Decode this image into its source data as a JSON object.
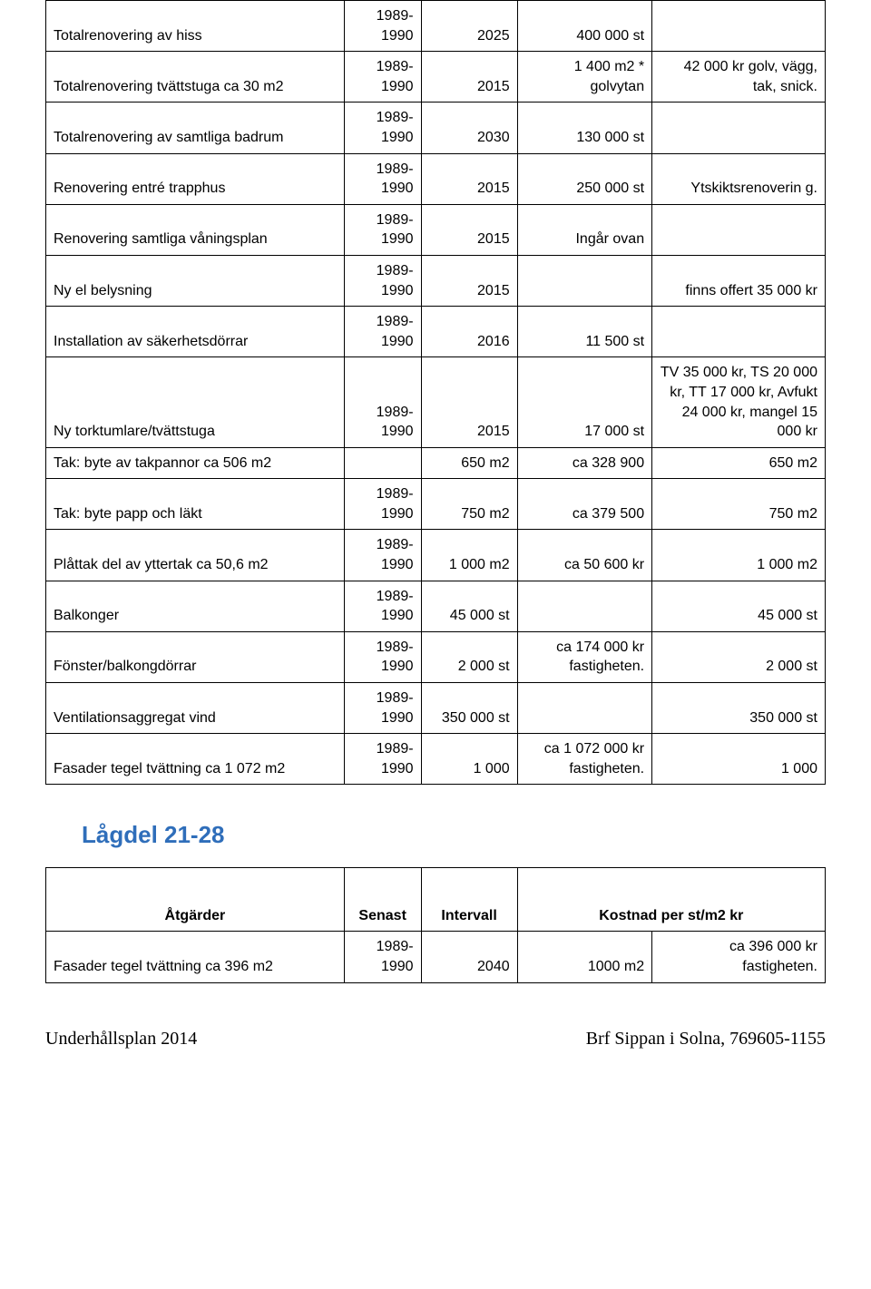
{
  "table1": {
    "rows": [
      {
        "c1": "Totalrenovering av hiss",
        "c2": "1989-1990",
        "c3": "2025",
        "c4": "400 000 st",
        "c5": ""
      },
      {
        "c1": "Totalrenovering tvättstuga ca 30 m2",
        "c2": "1989-1990",
        "c3": "2015",
        "c4": "1 400 m2 * golvytan",
        "c5": "42 000 kr golv, vägg, tak, snick."
      },
      {
        "c1": "Totalrenovering av samtliga badrum",
        "c2": "1989-1990",
        "c3": "2030",
        "c4": "130 000 st",
        "c5": ""
      },
      {
        "c1": "Renovering entré trapphus",
        "c2": "1989-1990",
        "c3": "2015",
        "c4": "250 000 st",
        "c5": "Ytskiktsrenoverin g."
      },
      {
        "c1": "Renovering samtliga våningsplan",
        "c2": "1989-1990",
        "c3": "2015",
        "c4": "Ingår ovan",
        "c5": ""
      },
      {
        "c1": "Ny el belysning",
        "c2": "1989-1990",
        "c3": "2015",
        "c4": "",
        "c5": "finns offert 35 000 kr"
      },
      {
        "c1": "Installation av säkerhetsdörrar",
        "c2": "1989-1990",
        "c3": "2016",
        "c4": "11 500 st",
        "c5": ""
      },
      {
        "c1": "Ny torktumlare/tvättstuga",
        "c2": "1989-1990",
        "c3": "2015",
        "c4": "17 000 st",
        "c5": "TV 35 000 kr, TS 20 000 kr, TT 17 000 kr, Avfukt 24 000 kr, mangel 15 000 kr"
      },
      {
        "c1": "Tak: byte av takpannor ca 506 m2",
        "c2": "",
        "c3": "650 m2",
        "c4": "ca 328 900",
        "c5": "650 m2"
      },
      {
        "c1": "Tak: byte papp och läkt",
        "c2": "1989-1990",
        "c3": "750 m2",
        "c4": "ca 379 500",
        "c5": "750 m2"
      },
      {
        "c1": "Plåttak del av yttertak ca 50,6 m2",
        "c2": "1989-1990",
        "c3": "1 000 m2",
        "c4": "ca 50 600 kr",
        "c5": "1 000 m2"
      },
      {
        "c1": "Balkonger",
        "c2": "1989-1990",
        "c3": "45 000 st",
        "c4": "",
        "c5": "45 000 st"
      },
      {
        "c1": "Fönster/balkongdörrar",
        "c2": "1989-1990",
        "c3": "2 000 st",
        "c4": "ca 174 000 kr fastigheten.",
        "c5": "2 000 st"
      },
      {
        "c1": "Ventilationsaggregat vind",
        "c2": "1989-1990",
        "c3": "350 000 st",
        "c4": "",
        "c5": "350 000 st"
      },
      {
        "c1": "Fasader tegel tvättning ca 1 072 m2",
        "c2": "1989-1990",
        "c3": "1 000",
        "c4": "ca 1 072 000 kr fastigheten.",
        "c5": "1 000"
      }
    ]
  },
  "section2_title": "Lågdel 21-28",
  "table2": {
    "header": {
      "c1": "Åtgärder",
      "c2": "Senast",
      "c3": "Intervall",
      "c45": "Kostnad per st/m2 kr"
    },
    "rows": [
      {
        "c1": "Fasader tegel tvättning ca 396 m2",
        "c2": "1989-1990",
        "c3": "2040",
        "c4": "1000 m2",
        "c5": "ca 396 000 kr fastigheten."
      }
    ]
  },
  "footer": {
    "left": "Underhållsplan 2014",
    "right": "Brf Sippan i Solna, 769605-1155"
  }
}
